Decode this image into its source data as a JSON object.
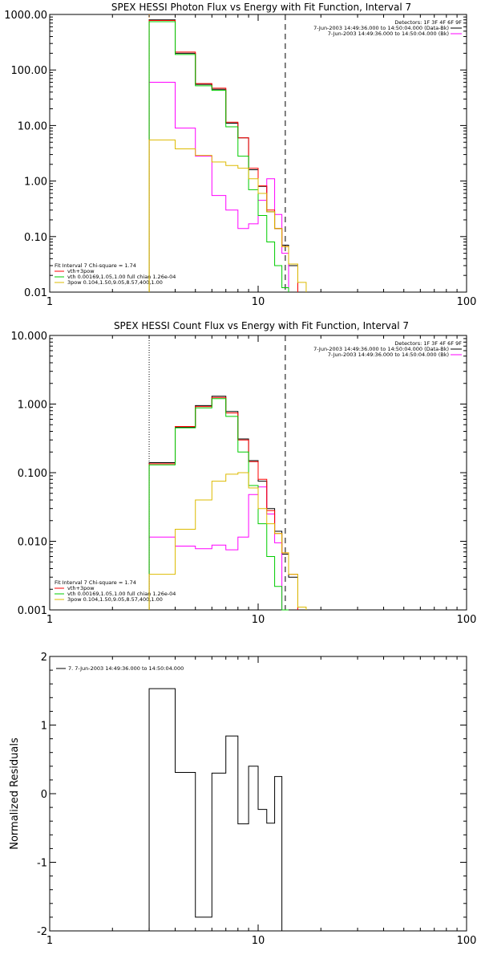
{
  "chart_data": [
    {
      "type": "line",
      "title": "SPEX HESSI Photon Flux vs Energy with Fit Function, Interval 7",
      "xlabel": "",
      "ylabel": "",
      "xscale": "log",
      "yscale": "log",
      "xlim": [
        1,
        100
      ],
      "ylim": [
        0.01,
        1000
      ],
      "xticks": [
        "1",
        "10",
        "100"
      ],
      "yticks": [
        "0.01",
        "0.10",
        "1.00",
        "10.00",
        "100.00",
        "1000.00"
      ],
      "header_lines": [
        "Detectors: 1F 3F 4F 6F 9F",
        "7-Jun-2003 14:49:36.000 to 14:50:04.000 (Data-Bk)",
        "7-Jun-2003 14:49:36.000 to 14:50:04.000 (Bk)"
      ],
      "fit_lines": [
        "Fit Interval  7    Chi-square = 1.74",
        "vth+3pow",
        "vth 0.00169,1.05,1.00  full chian 1.26e-04",
        "3pow 0.104,1.50,9.05,8.57,400,1.00"
      ],
      "vlines": [
        {
          "x": 3.0,
          "style": "dotted",
          "color": "#ff8c00"
        },
        {
          "x": 13.5,
          "style": "dashed",
          "color": "#000000"
        }
      ],
      "bin_edges": [
        3,
        4,
        5,
        6,
        7,
        8,
        9,
        10,
        11,
        12,
        13,
        14,
        15.5,
        17,
        18.5
      ],
      "series": [
        {
          "name": "Data-Bk",
          "color": "#000000",
          "values": [
            800,
            200,
            55,
            45,
            11,
            6,
            1.6,
            0.8,
            0.28,
            0.14,
            0.07,
            0.03
          ]
        },
        {
          "name": "Bk",
          "color": "#ff00ff",
          "values": [
            60,
            9,
            2.8,
            0.55,
            0.3,
            0.14,
            0.17,
            0.45,
            1.1,
            0.25,
            0.05
          ]
        },
        {
          "name": "vth+3pow",
          "color": "#ff0000",
          "values": [
            780,
            210,
            57,
            47,
            11.5,
            6,
            1.7,
            0.82,
            0.3,
            0.14,
            0.066,
            0.032
          ]
        },
        {
          "name": "vth",
          "color": "#00cc00",
          "values": [
            740,
            190,
            52,
            43,
            9.5,
            2.8,
            0.7,
            0.24,
            0.08,
            0.03,
            0.012
          ]
        },
        {
          "name": "3pow",
          "color": "#ddbb00",
          "values": [
            5.5,
            3.8,
            2.9,
            2.2,
            1.9,
            1.7,
            1.1,
            0.6,
            0.28,
            0.14,
            0.066,
            0.032,
            0.015
          ]
        }
      ]
    },
    {
      "type": "line",
      "title": "SPEX HESSI Count Flux vs Energy with Fit Function, Interval 7",
      "xlabel": "",
      "ylabel": "",
      "xscale": "log",
      "yscale": "log",
      "xlim": [
        1,
        100
      ],
      "ylim": [
        0.001,
        10
      ],
      "xticks": [
        "1",
        "10",
        "100"
      ],
      "yticks": [
        "0.001",
        "0.010",
        "0.100",
        "1.000",
        "10.000"
      ],
      "header_lines": [
        "Detectors: 1F 3F 4F 6F 9F",
        "7-Jun-2003 14:49:36.000 to 14:50:04.000 (Data-Bk)",
        "7-Jun-2003 14:49:36.000 to 14:50:04.000 (Bk)"
      ],
      "fit_lines": [
        "Fit Interval  7    Chi-square = 1.74",
        "vth+3pow",
        "vth 0.00169,1.05,1.00  full chian 1.26e-04",
        "3pow 0.104,1.50,9.05,8.57,400,1.00"
      ],
      "vlines": [
        {
          "x": 3.0,
          "style": "dotted",
          "color": "#000000"
        },
        {
          "x": 13.5,
          "style": "dashed",
          "color": "#000000"
        }
      ],
      "bin_edges": [
        3,
        4,
        5,
        6,
        7,
        8,
        9,
        10,
        11,
        12,
        13,
        14,
        15.5,
        17,
        18.5
      ],
      "series": [
        {
          "name": "Data-Bk",
          "color": "#000000",
          "values": [
            0.14,
            0.46,
            0.95,
            1.3,
            0.78,
            0.31,
            0.15,
            0.075,
            0.03,
            0.014,
            0.0065,
            0.003
          ]
        },
        {
          "name": "Bk",
          "color": "#ff00ff",
          "values": [
            0.0115,
            0.0085,
            0.0078,
            0.0088,
            0.0075,
            0.0115,
            0.048,
            0.062,
            0.025,
            0.0095
          ]
        },
        {
          "name": "vth+3pow",
          "color": "#ff0000",
          "values": [
            0.135,
            0.47,
            0.92,
            1.25,
            0.74,
            0.3,
            0.145,
            0.08,
            0.028,
            0.013,
            0.0068,
            0.0033
          ]
        },
        {
          "name": "vth",
          "color": "#00cc00",
          "values": [
            0.13,
            0.45,
            0.88,
            1.2,
            0.66,
            0.2,
            0.065,
            0.018,
            0.006,
            0.0022,
            0.001
          ]
        },
        {
          "name": "3pow",
          "color": "#ddbb00",
          "values": [
            0.0033,
            0.015,
            0.04,
            0.075,
            0.095,
            0.1,
            0.06,
            0.03,
            0.018,
            0.013,
            0.0068,
            0.0033,
            0.0011
          ]
        }
      ]
    },
    {
      "type": "line",
      "title": "",
      "xlabel": "",
      "ylabel": "Normalized Residuals",
      "xscale": "log",
      "yscale": "linear",
      "xlim": [
        1,
        100
      ],
      "ylim": [
        -2,
        2
      ],
      "xticks": [
        "1",
        "10",
        "100"
      ],
      "yticks": [
        "-2",
        "-1",
        "0",
        "1",
        "2"
      ],
      "legend": "7.  7-Jun-2003 14:49:36.000 to 14:50:04.000",
      "legend_position": "top-left",
      "bin_edges": [
        3,
        4,
        5,
        6,
        7,
        8,
        9,
        10,
        11,
        12,
        13
      ],
      "series": [
        {
          "name": "7",
          "color": "#000000",
          "values": [
            1.53,
            0.31,
            -1.8,
            0.3,
            0.84,
            -0.44,
            0.4,
            -0.23,
            -0.43,
            0.25
          ]
        }
      ]
    }
  ]
}
